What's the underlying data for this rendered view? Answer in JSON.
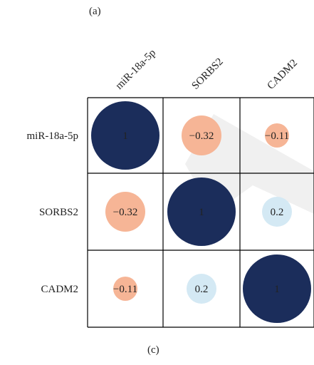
{
  "figure": {
    "top_label": "(a)",
    "bottom_label": "(c)"
  },
  "chart_data": {
    "type": "heatmap",
    "style": "correlation-circles",
    "variables": [
      "miR-18a-5p",
      "SORBS2",
      "CADM2"
    ],
    "matrix": [
      [
        1,
        -0.32,
        -0.11
      ],
      [
        -0.32,
        1,
        0.2
      ],
      [
        -0.11,
        0.2,
        1
      ]
    ],
    "cell_labels": [
      [
        "1",
        "−0.32",
        "−0.11"
      ],
      [
        "−0.32",
        "1",
        "0.2"
      ],
      [
        "−0.11",
        "0.2",
        "1"
      ]
    ],
    "colors": {
      "strong_positive": "#1b2d5b",
      "weak_positive": "#d4e9f4",
      "negative": "#f6b596",
      "grid": "#000000",
      "watermark": "#e6e6e6"
    }
  }
}
